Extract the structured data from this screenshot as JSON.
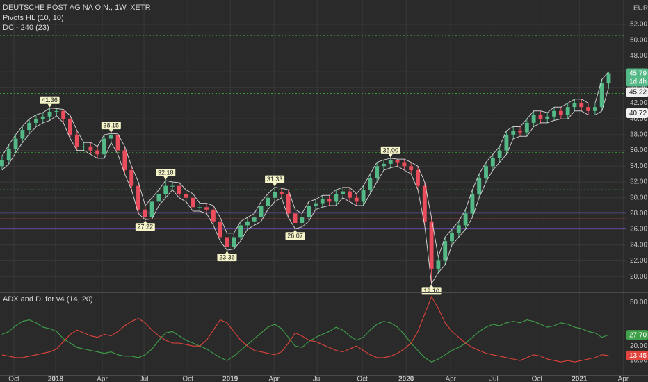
{
  "chart_data": [
    {
      "type": "candlestick",
      "title": "DEUTSCHE POST AG NA O.N., 1W, XETR",
      "indicators": [
        "Pivots HL (10, 10)",
        "DC - 240 (23)"
      ],
      "currency": "EUR",
      "xlim": [
        -0.3,
        91.5
      ],
      "xticks": [
        {
          "value": 1.74,
          "label": "Oct"
        },
        {
          "value": 7.86,
          "label": "2018"
        },
        {
          "value": 14.7,
          "label": "Apr"
        },
        {
          "value": 20.82,
          "label": "Jul"
        },
        {
          "value": 27.25,
          "label": "Oct"
        },
        {
          "value": 33.48,
          "label": "2019"
        },
        {
          "value": 39.9,
          "label": "Apr"
        },
        {
          "value": 46.23,
          "label": "Jul"
        },
        {
          "value": 52.86,
          "label": "Oct"
        },
        {
          "value": 59.29,
          "label": "2020"
        },
        {
          "value": 65.82,
          "label": "Apr"
        },
        {
          "value": 72.15,
          "label": "Jul"
        },
        {
          "value": 78.48,
          "label": "Oct"
        },
        {
          "value": 84.7,
          "label": "2021"
        },
        {
          "value": 91.13,
          "label": "Apr"
        }
      ],
      "ylim": [
        18.08,
        55.08
      ],
      "yticks": [
        {
          "value": 20,
          "label": "20.00"
        },
        {
          "value": 22,
          "label": "22.00"
        },
        {
          "value": 24,
          "label": "24.00"
        },
        {
          "value": 26,
          "label": "26.00"
        },
        {
          "value": 28,
          "label": "28.00"
        },
        {
          "value": 30,
          "label": "30.00"
        },
        {
          "value": 32,
          "label": "32.00"
        },
        {
          "value": 34,
          "label": "34.00"
        },
        {
          "value": 36,
          "label": "36.00"
        },
        {
          "value": 38,
          "label": "38.00"
        },
        {
          "value": 40,
          "label": "40.00"
        },
        {
          "value": 42,
          "label": "42.00"
        },
        {
          "value": 44,
          "label": "44.00"
        },
        {
          "value": 46,
          "label": "46.00"
        },
        {
          "value": 48,
          "label": "48.00"
        },
        {
          "value": 50,
          "label": "50.00"
        },
        {
          "value": 52,
          "label": "52.00"
        }
      ],
      "grid": true,
      "up_color": "#53b987",
      "down_color": "#eb4d5c",
      "open": [
        34.0,
        34.8,
        36.2,
        37.5,
        38.6,
        39.5,
        40.0,
        40.3,
        40.9,
        41.0,
        40.0,
        38.0,
        36.5,
        36.5,
        36.0,
        35.5,
        37.5,
        38.0,
        36.0,
        33.5,
        31.5,
        28.5,
        27.5,
        29.5,
        30.5,
        31.5,
        31.5,
        30.5,
        30.0,
        28.8,
        28.8,
        28.5,
        27.0,
        25.0,
        23.8,
        25.0,
        26.5,
        27.0,
        27.5,
        29.0,
        30.0,
        30.7,
        30.5,
        28.0,
        26.8,
        27.5,
        29.0,
        29.3,
        29.8,
        29.5,
        30.5,
        30.8,
        30.0,
        29.5,
        31.0,
        32.5,
        34.0,
        34.3,
        34.8,
        34.5,
        34.0,
        33.5,
        31.5,
        27.0,
        21.0,
        22.0,
        24.5,
        25.5,
        26.5,
        28.0,
        30.5,
        32.5,
        34.0,
        35.0,
        36.0,
        38.0,
        38.5,
        38.3,
        39.5,
        40.5,
        40.0,
        40.3,
        41.0,
        40.5,
        41.5,
        42.0,
        41.5,
        41.0,
        41.5,
        44.5
      ],
      "high": [
        35.3,
        36.7,
        38.0,
        39.1,
        40.0,
        40.5,
        40.8,
        41.36,
        41.3,
        41.2,
        40.4,
        38.5,
        37.0,
        37.0,
        36.5,
        38.0,
        38.15,
        38.1,
        36.5,
        34.0,
        32.0,
        29.0,
        30.0,
        31.0,
        32.18,
        32.0,
        31.9,
        31.0,
        30.5,
        29.3,
        29.3,
        29.0,
        27.5,
        25.5,
        25.5,
        27.0,
        27.5,
        28.0,
        29.5,
        30.5,
        31.33,
        31.2,
        31.0,
        28.5,
        28.0,
        29.5,
        29.8,
        30.3,
        30.3,
        31.0,
        31.3,
        31.3,
        30.5,
        31.5,
        33.0,
        34.5,
        34.8,
        35.0,
        34.9,
        34.9,
        34.5,
        34.0,
        32.0,
        27.5,
        22.5,
        25.0,
        26.0,
        27.0,
        28.5,
        31.0,
        33.0,
        34.5,
        35.5,
        36.5,
        38.5,
        39.0,
        39.0,
        40.0,
        41.0,
        41.0,
        40.8,
        41.5,
        41.5,
        42.0,
        42.5,
        42.5,
        42.0,
        42.0,
        45.0,
        46.0
      ],
      "low": [
        33.5,
        34.3,
        35.7,
        37.0,
        38.1,
        39.0,
        39.5,
        39.8,
        40.4,
        39.5,
        37.5,
        36.0,
        36.0,
        35.5,
        35.0,
        35.0,
        37.0,
        35.5,
        33.0,
        31.0,
        28.0,
        27.22,
        27.3,
        29.0,
        30.0,
        31.0,
        30.0,
        29.5,
        28.3,
        28.3,
        28.0,
        26.5,
        24.5,
        23.36,
        23.5,
        24.5,
        26.0,
        26.5,
        27.0,
        28.5,
        29.5,
        30.0,
        27.5,
        26.07,
        26.3,
        27.0,
        28.5,
        28.8,
        29.0,
        29.0,
        30.0,
        29.5,
        29.0,
        29.0,
        30.5,
        32.0,
        33.5,
        33.8,
        34.0,
        33.5,
        33.0,
        31.0,
        26.5,
        19.1,
        20.5,
        21.5,
        24.0,
        25.0,
        26.0,
        27.5,
        30.0,
        32.0,
        33.5,
        34.5,
        35.5,
        37.5,
        37.8,
        37.8,
        39.0,
        39.5,
        39.5,
        39.8,
        40.0,
        40.0,
        41.0,
        41.0,
        40.5,
        40.5,
        41.0,
        44.0
      ],
      "close": [
        34.8,
        36.2,
        37.5,
        38.6,
        39.5,
        40.0,
        40.3,
        40.9,
        41.0,
        40.0,
        38.0,
        36.5,
        36.5,
        36.0,
        35.5,
        37.5,
        38.0,
        36.0,
        33.5,
        31.5,
        28.5,
        27.5,
        29.5,
        30.5,
        31.5,
        31.5,
        30.5,
        30.0,
        28.8,
        28.8,
        28.5,
        27.0,
        25.0,
        23.8,
        25.0,
        26.5,
        27.0,
        27.5,
        29.0,
        30.0,
        30.7,
        30.5,
        28.0,
        26.8,
        27.5,
        29.0,
        29.3,
        29.8,
        29.5,
        30.5,
        30.8,
        30.0,
        29.5,
        31.0,
        32.5,
        34.0,
        34.3,
        34.8,
        34.5,
        34.0,
        33.5,
        31.5,
        27.0,
        21.0,
        22.0,
        24.5,
        25.5,
        26.5,
        28.0,
        30.5,
        32.5,
        34.0,
        35.0,
        36.0,
        38.0,
        38.5,
        38.3,
        39.5,
        40.5,
        40.0,
        40.3,
        41.0,
        40.5,
        41.5,
        42.0,
        41.5,
        41.0,
        41.5,
        44.5,
        45.79
      ],
      "levels": [
        {
          "value": 50.6,
          "color": "#3fbf3f",
          "style": "dotted"
        },
        {
          "value": 43.2,
          "color": "#3fbf3f",
          "style": "dotted"
        },
        {
          "value": 35.7,
          "color": "#3fbf3f",
          "style": "dotted"
        },
        {
          "value": 31.0,
          "color": "#3fbf3f",
          "style": "dotted"
        },
        {
          "value": 28.1,
          "color": "#7a4fd0",
          "style": "solid"
        },
        {
          "value": 27.3,
          "color": "#d9433a",
          "style": "solid"
        },
        {
          "value": 26.1,
          "color": "#7a4fd0",
          "style": "solid"
        }
      ],
      "pivot_highs": {
        "x": [
          7,
          16,
          24,
          40,
          57
        ],
        "values": [
          41.36,
          38.15,
          32.18,
          31.33,
          35.0
        ],
        "value_labels": [
          "41.36",
          "38.15",
          "32.18",
          "31.33",
          "35.00"
        ]
      },
      "pivot_lows": {
        "x": [
          21,
          33,
          43,
          63
        ],
        "values": [
          27.22,
          23.36,
          26.07,
          19.1
        ],
        "value_labels": [
          "27.22",
          "23.36",
          "26.07",
          "19.10"
        ]
      },
      "price_tags": [
        {
          "value": 45.79,
          "label": "45.79",
          "color": "#53b987",
          "countdown": "1d 4h"
        },
        {
          "value": 45.22,
          "label": "45.22",
          "color": "#f0f0f0"
        },
        {
          "value": 40.72,
          "label": "40.72",
          "color": "#f0f0f0"
        }
      ]
    },
    {
      "type": "line",
      "title": "ADX and DI for v4 (14, 20)",
      "xlim": [
        -0.3,
        91.5
      ],
      "ylim": [
        0,
        56
      ],
      "yticks": [
        {
          "value": 50,
          "label": "50.00"
        },
        {
          "value": 20,
          "label": "20.00"
        },
        {
          "value": 10,
          "label": "10.00"
        }
      ],
      "series": [
        {
          "color": "#3fa04a",
          "values": [
            28,
            30,
            34,
            37,
            38,
            36,
            33,
            32,
            30,
            25,
            22,
            19,
            18,
            17,
            16,
            15,
            16,
            14,
            13,
            13,
            12,
            14,
            18,
            24,
            29,
            30,
            27,
            24,
            22,
            20,
            18,
            15,
            12,
            10,
            13,
            17,
            21,
            25,
            29,
            33,
            35,
            32,
            26,
            20,
            19,
            23,
            26,
            28,
            30,
            33,
            31,
            27,
            24,
            26,
            31,
            35,
            37,
            36,
            33,
            28,
            22,
            17,
            12,
            9,
            11,
            14,
            17,
            19,
            22,
            26,
            30,
            33,
            35,
            34,
            36,
            37,
            36,
            38,
            37,
            35,
            33,
            34,
            36,
            35,
            33,
            32,
            30,
            29,
            26,
            27.7
          ]
        },
        {
          "color": "#e0443c",
          "values": [
            14,
            13,
            12,
            12,
            13,
            14,
            15,
            16,
            18,
            23,
            28,
            31,
            29,
            27,
            26,
            28,
            27,
            30,
            34,
            37,
            39,
            36,
            31,
            27,
            24,
            22,
            22,
            21,
            20,
            20,
            24,
            31,
            38,
            36,
            30,
            24,
            20,
            17,
            16,
            15,
            14,
            16,
            22,
            29,
            27,
            24,
            23,
            21,
            19,
            17,
            16,
            18,
            20,
            17,
            14,
            12,
            12,
            13,
            15,
            18,
            22,
            30,
            42,
            54,
            46,
            36,
            30,
            26,
            22,
            19,
            17,
            15,
            14,
            13,
            12,
            11,
            10,
            12,
            14,
            13,
            11,
            10,
            9,
            10,
            9,
            10,
            11,
            12,
            14,
            13.45
          ]
        }
      ],
      "tags": [
        {
          "value": 27.7,
          "label": "27.70",
          "color": "#3fa04a"
        },
        {
          "value": 13.45,
          "label": "13.45",
          "color": "#e0443c"
        }
      ]
    }
  ]
}
